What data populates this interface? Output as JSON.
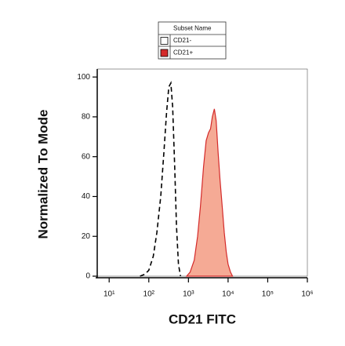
{
  "chart_data": {
    "type": "histogram-overlay",
    "xlabel": "CD21 FITC",
    "ylabel": "Normalized To Mode",
    "xscale": "log",
    "xlim": [
      5,
      1000000
    ],
    "xticks": [
      {
        "value": 10,
        "label": "10¹"
      },
      {
        "value": 100,
        "label": "10²"
      },
      {
        "value": 1000,
        "label": "10³"
      },
      {
        "value": 10000,
        "label": "10⁴"
      },
      {
        "value": 100000,
        "label": "10⁵"
      },
      {
        "value": 1000000,
        "label": "10⁶"
      }
    ],
    "ylim": [
      0,
      104
    ],
    "yticks": [
      0,
      20,
      40,
      60,
      80,
      100
    ],
    "legend_title": "Subset Name",
    "series": [
      {
        "name": "CD21-",
        "color": "#000000",
        "filled": false,
        "dashed": true,
        "x": [
          60,
          80,
          100,
          130,
          160,
          200,
          240,
          280,
          320,
          360,
          400,
          450,
          500,
          560,
          630
        ],
        "values": [
          0,
          1,
          3,
          10,
          22,
          40,
          62,
          82,
          95,
          97,
          85,
          55,
          25,
          6,
          0
        ]
      },
      {
        "name": "CD21+",
        "color": "#d42a2a",
        "fill": "#f4a58f",
        "filled": true,
        "dashed": false,
        "x": [
          900,
          1100,
          1400,
          1700,
          2000,
          2400,
          2800,
          3200,
          3600,
          4000,
          4500,
          5000,
          5600,
          6300,
          7100,
          8000,
          9000,
          10000,
          11500,
          13000
        ],
        "values": [
          0,
          2,
          8,
          20,
          35,
          55,
          68,
          72,
          74,
          80,
          84,
          78,
          62,
          48,
          35,
          22,
          12,
          6,
          2,
          0
        ]
      }
    ]
  }
}
